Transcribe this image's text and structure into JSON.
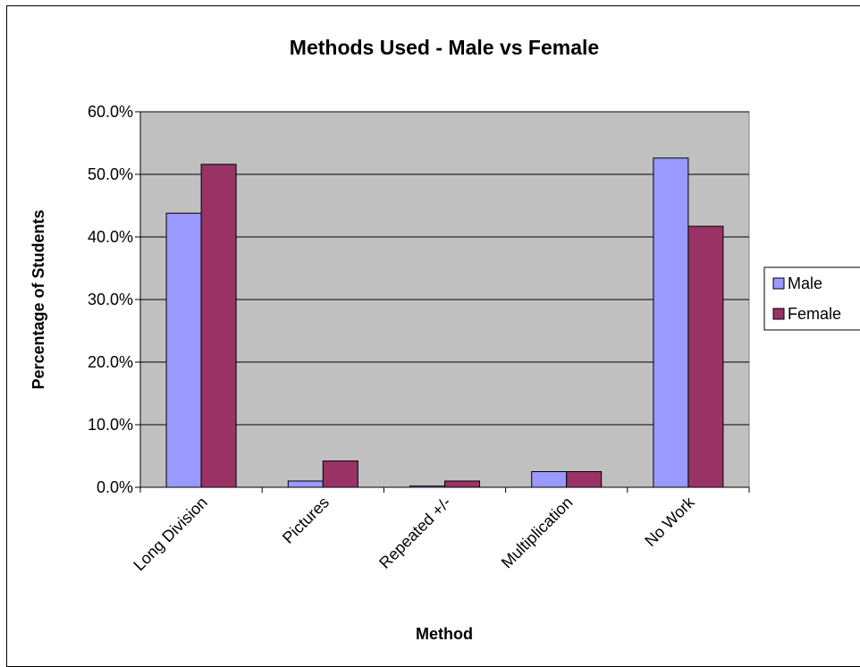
{
  "chart_data": {
    "type": "bar",
    "title": "Methods Used - Male vs Female",
    "xlabel": "Method",
    "ylabel": "Percentage of Students",
    "categories": [
      "Long Division",
      "Pictures",
      "Repeated +/-",
      "Multiplication",
      "No Work"
    ],
    "series": [
      {
        "name": "Male",
        "values": [
          43.8,
          1.0,
          0.2,
          2.5,
          52.6
        ],
        "color": "#9999ff"
      },
      {
        "name": "Female",
        "values": [
          51.6,
          4.2,
          1.0,
          2.5,
          41.7
        ],
        "color": "#993366"
      }
    ],
    "ylim": [
      0,
      60
    ],
    "yticks": [
      "0.0%",
      "10.0%",
      "20.0%",
      "30.0%",
      "40.0%",
      "50.0%",
      "60.0%"
    ],
    "grid": true,
    "plot_background": "#c0c0c0",
    "legend_position": "right"
  }
}
